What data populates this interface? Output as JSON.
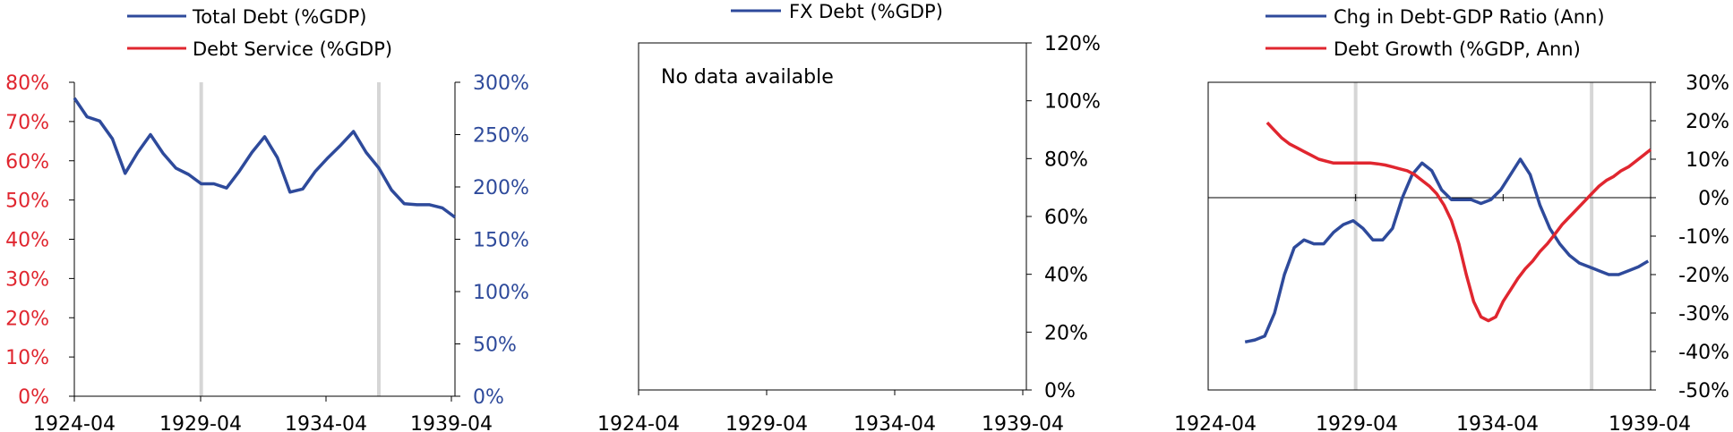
{
  "colors": {
    "blue": "#2E4A9B",
    "red": "#E0262F",
    "axis": "#000000",
    "recession": "#D6D6D6",
    "tick_left_red": "#E0262F",
    "tick_right_blue": "#2E4A9B"
  },
  "chart_data": [
    {
      "type": "line",
      "legend": [
        "Total Debt (%GDP)",
        "Debt Service (%GDP)"
      ],
      "x_labels": [
        "1924-04",
        "1929-04",
        "1934-04",
        "1939-04"
      ],
      "x_range": [
        "1924-04",
        "1939-04"
      ],
      "left_axis": {
        "ticks": [
          "0%",
          "10%",
          "20%",
          "30%",
          "40%",
          "50%",
          "60%",
          "70%",
          "80%"
        ],
        "range": [
          0,
          80
        ]
      },
      "right_axis": {
        "ticks": [
          "0%",
          "50%",
          "100%",
          "150%",
          "200%",
          "250%",
          "300%"
        ],
        "range": [
          0,
          300
        ]
      },
      "recession_bands": [
        "1929-04",
        "1936-04"
      ],
      "series": [
        {
          "name": "Total Debt (%GDP)",
          "axis": "right",
          "x": [
            "1924-04",
            "1924-10",
            "1925-04",
            "1925-10",
            "1926-04",
            "1926-10",
            "1927-04",
            "1927-10",
            "1928-04",
            "1928-10",
            "1929-04",
            "1929-10",
            "1930-04",
            "1930-10",
            "1931-04",
            "1931-10",
            "1932-04",
            "1932-10",
            "1933-04",
            "1933-10",
            "1934-04",
            "1934-10",
            "1935-04",
            "1935-10",
            "1936-04",
            "1936-10",
            "1937-04",
            "1937-10",
            "1938-04",
            "1938-10",
            "1939-04"
          ],
          "values": [
            285,
            267,
            263,
            246,
            213,
            233,
            250,
            232,
            218,
            212,
            203,
            203,
            199,
            215,
            233,
            248,
            228,
            195,
            198,
            215,
            228,
            240,
            253,
            233,
            218,
            197,
            184,
            183,
            183,
            180,
            171
          ]
        },
        {
          "name": "Debt Service (%GDP)",
          "axis": "left",
          "x": [],
          "values": []
        }
      ]
    },
    {
      "type": "line",
      "legend": [
        "FX Debt (%GDP)"
      ],
      "x_labels": [
        "1924-04",
        "1929-04",
        "1934-04",
        "1939-04"
      ],
      "right_axis": {
        "ticks": [
          "0%",
          "20%",
          "40%",
          "60%",
          "80%",
          "100%",
          "120%"
        ],
        "range": [
          0,
          120
        ]
      },
      "annotation": "No data available",
      "series": [
        {
          "name": "FX Debt (%GDP)",
          "x": [],
          "values": []
        }
      ]
    },
    {
      "type": "line",
      "legend": [
        "Chg in Debt-GDP Ratio (Ann)",
        "Debt Growth (%GDP, Ann)"
      ],
      "x_labels": [
        "1924-04",
        "1929-04",
        "1934-04",
        "1939-04"
      ],
      "x_range": [
        "1924-04",
        "1939-04"
      ],
      "right_axis": {
        "ticks": [
          "-50%",
          "-40%",
          "-30%",
          "-20%",
          "-10%",
          "0%",
          "10%",
          "20%",
          "30%"
        ],
        "range": [
          -50,
          30
        ]
      },
      "recession_bands": [
        "1929-04",
        "1937-04"
      ],
      "series": [
        {
          "name": "Chg in Debt-GDP Ratio (Ann)",
          "x": [
            "1925-07",
            "1925-11",
            "1926-03",
            "1926-07",
            "1926-11",
            "1927-03",
            "1927-07",
            "1927-11",
            "1928-03",
            "1928-07",
            "1928-11",
            "1929-03",
            "1929-07",
            "1929-11",
            "1930-03",
            "1930-07",
            "1930-11",
            "1931-03",
            "1931-07",
            "1931-11",
            "1932-03",
            "1932-07",
            "1932-11",
            "1933-03",
            "1933-07",
            "1933-11",
            "1934-03",
            "1934-07",
            "1934-11",
            "1935-03",
            "1935-07",
            "1935-11",
            "1936-03",
            "1936-07",
            "1936-11",
            "1937-03",
            "1937-07",
            "1937-11",
            "1938-03",
            "1938-07",
            "1938-11",
            "1939-03"
          ],
          "values": [
            -37.5,
            -37,
            -36,
            -30,
            -20,
            -13,
            -11,
            -12,
            -12,
            -9,
            -7,
            -6,
            -8,
            -11,
            -11,
            -8,
            0,
            6,
            9,
            7,
            2,
            -0.5,
            -0.5,
            -0.5,
            -1.5,
            -0.5,
            2,
            6,
            10,
            6,
            -2,
            -8,
            -12,
            -15,
            -17,
            -18,
            -19,
            -20,
            -20,
            -19,
            -18,
            -16.5
          ]
        },
        {
          "name": "Debt Growth (%GDP, Ann)",
          "x": [
            "1926-04",
            "1926-07",
            "1926-10",
            "1927-01",
            "1927-04",
            "1927-07",
            "1927-10",
            "1928-01",
            "1928-04",
            "1928-07",
            "1928-10",
            "1929-01",
            "1929-04",
            "1929-07",
            "1929-10",
            "1930-01",
            "1930-04",
            "1930-07",
            "1930-10",
            "1931-01",
            "1931-04",
            "1931-07",
            "1931-10",
            "1932-01",
            "1932-04",
            "1932-07",
            "1932-10",
            "1933-01",
            "1933-04",
            "1933-07",
            "1933-10",
            "1934-01",
            "1934-04",
            "1934-07",
            "1934-10",
            "1935-01",
            "1935-04",
            "1935-07",
            "1935-10",
            "1936-01",
            "1936-04",
            "1936-07",
            "1936-10",
            "1937-01",
            "1937-04",
            "1937-07",
            "1937-10",
            "1938-01",
            "1938-04",
            "1938-07",
            "1938-10",
            "1939-01",
            "1939-04"
          ],
          "values": [
            19.5,
            17.5,
            15.5,
            14,
            13,
            12,
            11,
            10,
            9.5,
            9,
            9,
            9,
            9,
            9,
            9,
            8.8,
            8.5,
            8,
            7.5,
            7,
            6,
            4.5,
            3,
            1,
            -2,
            -6,
            -12,
            -20,
            -27,
            -31,
            -32,
            -31,
            -27,
            -24,
            -21,
            -18.5,
            -16.5,
            -14,
            -12,
            -9.5,
            -7,
            -5,
            -3,
            -1,
            1,
            3,
            4.5,
            5.5,
            7,
            8,
            9.5,
            11,
            12.5
          ]
        }
      ]
    }
  ]
}
